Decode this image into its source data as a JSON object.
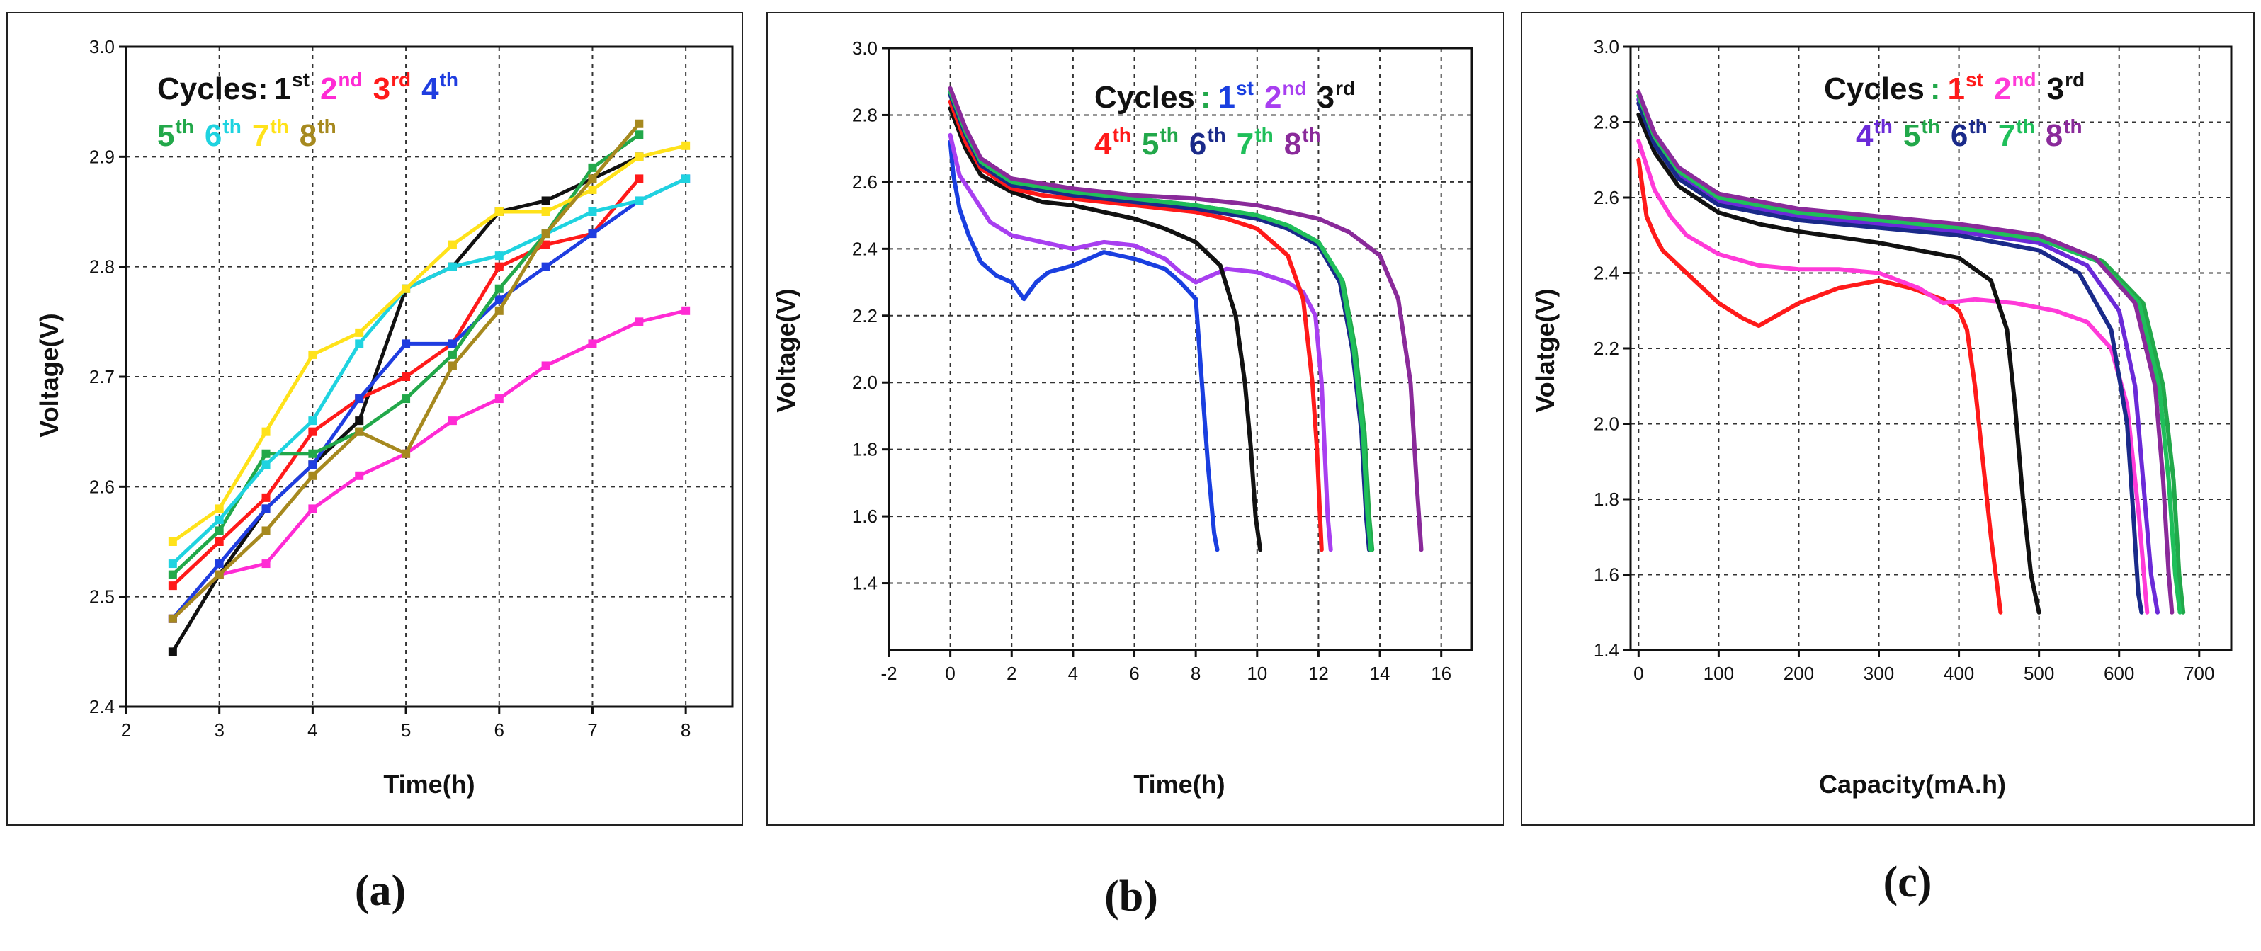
{
  "chart_data": [
    {
      "panel": "(a)",
      "type": "line",
      "xlabel": "Time(h)",
      "ylabel": "Voltage(V)",
      "xlim": [
        2,
        8.5
      ],
      "ylim": [
        2.4,
        3.0
      ],
      "xticks": [
        "2",
        "3",
        "4",
        "5",
        "6",
        "7",
        "8"
      ],
      "yticks": [
        "2.4",
        "2.5",
        "2.6",
        "2.7",
        "2.8",
        "2.9",
        "3.0"
      ],
      "legend_title": "Cycles:",
      "series": [
        {
          "name": "1st",
          "ord": "1",
          "suf": "st",
          "color": "#111111",
          "x": [
            2.5,
            3,
            3.5,
            4,
            4.5,
            5,
            5.5,
            6,
            6.5,
            7,
            7.5
          ],
          "y": [
            2.45,
            2.52,
            2.58,
            2.62,
            2.66,
            2.78,
            2.8,
            2.85,
            2.86,
            2.88,
            2.9
          ]
        },
        {
          "name": "2nd",
          "ord": "2",
          "suf": "nd",
          "color": "#ff2bd4",
          "x": [
            2.5,
            3,
            3.5,
            4,
            4.5,
            5,
            5.5,
            6,
            6.5,
            7,
            7.5,
            8
          ],
          "y": [
            2.48,
            2.52,
            2.53,
            2.58,
            2.61,
            2.63,
            2.66,
            2.68,
            2.71,
            2.73,
            2.75,
            2.76
          ]
        },
        {
          "name": "3rd",
          "ord": "3",
          "suf": "rd",
          "color": "#ff1a1a",
          "x": [
            2.5,
            3,
            3.5,
            4,
            4.5,
            5,
            5.5,
            6,
            6.5,
            7,
            7.5
          ],
          "y": [
            2.51,
            2.55,
            2.59,
            2.65,
            2.68,
            2.7,
            2.73,
            2.8,
            2.82,
            2.83,
            2.88
          ]
        },
        {
          "name": "4th",
          "ord": "4",
          "suf": "th",
          "color": "#1f3de0",
          "x": [
            2.5,
            3,
            3.5,
            4,
            4.5,
            5,
            5.5,
            6,
            6.5,
            7,
            7.5,
            8
          ],
          "y": [
            2.48,
            2.53,
            2.58,
            2.62,
            2.68,
            2.73,
            2.73,
            2.77,
            2.8,
            2.83,
            2.86,
            2.88
          ]
        },
        {
          "name": "5th",
          "ord": "5",
          "suf": "th",
          "color": "#22a84a",
          "x": [
            2.5,
            3,
            3.5,
            4,
            4.5,
            5,
            5.5,
            6,
            6.5,
            7,
            7.5
          ],
          "y": [
            2.52,
            2.56,
            2.63,
            2.63,
            2.65,
            2.68,
            2.72,
            2.78,
            2.83,
            2.89,
            2.92
          ]
        },
        {
          "name": "6th",
          "ord": "6",
          "suf": "th",
          "color": "#1fd3e0",
          "x": [
            2.5,
            3,
            3.5,
            4,
            4.5,
            5,
            5.5,
            6,
            6.5,
            7,
            7.5,
            8
          ],
          "y": [
            2.53,
            2.57,
            2.62,
            2.66,
            2.73,
            2.78,
            2.8,
            2.81,
            2.83,
            2.85,
            2.86,
            2.88
          ]
        },
        {
          "name": "7th",
          "ord": "7",
          "suf": "th",
          "color": "#ffe21a",
          "x": [
            2.5,
            3,
            3.5,
            4,
            4.5,
            5,
            5.5,
            6,
            6.5,
            7,
            7.5,
            8
          ],
          "y": [
            2.55,
            2.58,
            2.65,
            2.72,
            2.74,
            2.78,
            2.82,
            2.85,
            2.85,
            2.87,
            2.9,
            2.91
          ]
        },
        {
          "name": "8th",
          "ord": "8",
          "suf": "th",
          "color": "#a6891f",
          "x": [
            2.5,
            3,
            3.5,
            4,
            4.5,
            5,
            5.5,
            6,
            6.5,
            7,
            7.5
          ],
          "y": [
            2.48,
            2.52,
            2.56,
            2.61,
            2.65,
            2.63,
            2.71,
            2.76,
            2.83,
            2.88,
            2.93
          ]
        }
      ]
    },
    {
      "panel": "(b)",
      "type": "line",
      "xlabel": "Time(h)",
      "ylabel": "Voltage(V)",
      "xlim": [
        -2,
        17
      ],
      "ylim": [
        1.2,
        3.0
      ],
      "xticks": [
        "-2",
        "0",
        "2",
        "4",
        "6",
        "8",
        "10",
        "12",
        "14",
        "16"
      ],
      "yticks": [
        "1.4",
        "1.6",
        "1.8",
        "2.0",
        "2.2",
        "2.4",
        "2.6",
        "2.8",
        "3.0"
      ],
      "legend_title": "Cycles",
      "legend_sep": ":",
      "series": [
        {
          "name": "1st",
          "ord": "1",
          "suf": "st",
          "color": "#1a3fe0",
          "x": [
            0,
            0.1,
            0.3,
            0.6,
            1,
            1.5,
            2,
            2.4,
            2.8,
            3.2,
            4,
            5,
            6,
            7,
            7.5,
            8,
            8.2,
            8.4,
            8.6,
            8.7
          ],
          "y": [
            2.72,
            2.62,
            2.52,
            2.44,
            2.36,
            2.32,
            2.3,
            2.25,
            2.3,
            2.33,
            2.35,
            2.39,
            2.37,
            2.34,
            2.3,
            2.25,
            2.0,
            1.75,
            1.55,
            1.5
          ]
        },
        {
          "name": "2nd",
          "ord": "2",
          "suf": "nd",
          "color": "#a83ff0",
          "x": [
            0,
            0.3,
            0.8,
            1.3,
            2,
            3,
            4,
            5,
            6,
            7,
            7.5,
            8,
            9,
            10,
            11,
            11.5,
            11.9,
            12.1,
            12.2,
            12.3,
            12.4
          ],
          "y": [
            2.74,
            2.62,
            2.55,
            2.48,
            2.44,
            2.42,
            2.4,
            2.42,
            2.41,
            2.37,
            2.33,
            2.3,
            2.34,
            2.33,
            2.3,
            2.27,
            2.2,
            2.0,
            1.8,
            1.6,
            1.5
          ]
        },
        {
          "name": "3rd",
          "ord": "3",
          "suf": "rd",
          "color": "#111111",
          "x": [
            0,
            0.5,
            1,
            2,
            3,
            4,
            5,
            6,
            7,
            8,
            8.8,
            9.3,
            9.6,
            9.8,
            9.95,
            10.1
          ],
          "y": [
            2.82,
            2.7,
            2.62,
            2.57,
            2.54,
            2.53,
            2.51,
            2.49,
            2.46,
            2.42,
            2.35,
            2.2,
            2.0,
            1.8,
            1.6,
            1.5
          ]
        },
        {
          "name": "4th",
          "ord": "4",
          "suf": "th",
          "color": "#ff1a1a",
          "x": [
            0,
            0.5,
            1,
            2,
            3,
            4,
            5,
            6,
            7,
            8,
            9,
            10,
            11,
            11.5,
            11.8,
            11.95,
            12.05,
            12.1
          ],
          "y": [
            2.84,
            2.72,
            2.64,
            2.58,
            2.56,
            2.55,
            2.54,
            2.53,
            2.52,
            2.51,
            2.49,
            2.46,
            2.38,
            2.25,
            2.0,
            1.8,
            1.6,
            1.5
          ]
        },
        {
          "name": "5th",
          "ord": "5",
          "suf": "th",
          "color": "#22a84a",
          "x": [
            0,
            0.5,
            1,
            2,
            4,
            6,
            8,
            10,
            11,
            12,
            12.8,
            13.2,
            13.5,
            13.65,
            13.75
          ],
          "y": [
            2.86,
            2.74,
            2.66,
            2.6,
            2.57,
            2.55,
            2.53,
            2.5,
            2.47,
            2.42,
            2.3,
            2.1,
            1.85,
            1.6,
            1.5
          ]
        },
        {
          "name": "6th",
          "ord": "6",
          "suf": "th",
          "color": "#1a2a8a",
          "x": [
            0,
            0.5,
            1,
            2,
            4,
            6,
            8,
            10,
            11,
            12,
            12.7,
            13.1,
            13.4,
            13.55,
            13.65
          ],
          "y": [
            2.86,
            2.74,
            2.65,
            2.59,
            2.56,
            2.54,
            2.52,
            2.49,
            2.46,
            2.41,
            2.3,
            2.1,
            1.85,
            1.6,
            1.5
          ]
        },
        {
          "name": "7th",
          "ord": "7",
          "suf": "th",
          "color": "#1fbf5a",
          "x": [
            0,
            0.5,
            1,
            2,
            4,
            6,
            8,
            10,
            11,
            12,
            12.75,
            13.15,
            13.45,
            13.6,
            13.7
          ],
          "y": [
            2.87,
            2.75,
            2.66,
            2.6,
            2.57,
            2.55,
            2.53,
            2.5,
            2.47,
            2.42,
            2.31,
            2.1,
            1.85,
            1.6,
            1.5
          ]
        },
        {
          "name": "8th",
          "ord": "8",
          "suf": "th",
          "color": "#8a2a9a",
          "x": [
            0,
            0.5,
            1,
            2,
            4,
            6,
            8,
            10,
            12,
            13,
            14,
            14.6,
            15,
            15.2,
            15.35
          ],
          "y": [
            2.88,
            2.76,
            2.67,
            2.61,
            2.58,
            2.56,
            2.55,
            2.53,
            2.49,
            2.45,
            2.38,
            2.25,
            2.0,
            1.7,
            1.5
          ]
        }
      ]
    },
    {
      "panel": "(c)",
      "type": "line",
      "xlabel": "Capacity(mA.h)",
      "ylabel": "Volatge(V)",
      "xlim": [
        -10,
        740
      ],
      "ylim": [
        1.4,
        3.0
      ],
      "xticks": [
        "0",
        "100",
        "200",
        "300",
        "400",
        "500",
        "600",
        "700"
      ],
      "yticks": [
        "1.4",
        "1.6",
        "1.8",
        "2.0",
        "2.2",
        "2.4",
        "2.6",
        "2.8",
        "3.0"
      ],
      "legend_title": "Cycles",
      "legend_sep": ":",
      "series": [
        {
          "name": "1st",
          "ord": "1",
          "suf": "st",
          "color": "#ff1a1a",
          "x": [
            0,
            10,
            20,
            30,
            50,
            80,
            100,
            130,
            150,
            200,
            250,
            300,
            340,
            380,
            400,
            410,
            420,
            430,
            440,
            452
          ],
          "y": [
            2.7,
            2.55,
            2.5,
            2.46,
            2.42,
            2.36,
            2.32,
            2.28,
            2.26,
            2.32,
            2.36,
            2.38,
            2.36,
            2.33,
            2.3,
            2.25,
            2.1,
            1.9,
            1.7,
            1.5
          ]
        },
        {
          "name": "2nd",
          "ord": "2",
          "suf": "nd",
          "color": "#ff3ad8",
          "x": [
            0,
            20,
            40,
            60,
            100,
            150,
            200,
            250,
            300,
            350,
            380,
            420,
            470,
            520,
            560,
            590,
            610,
            625,
            635
          ],
          "y": [
            2.75,
            2.62,
            2.55,
            2.5,
            2.45,
            2.42,
            2.41,
            2.41,
            2.4,
            2.36,
            2.32,
            2.33,
            2.32,
            2.3,
            2.27,
            2.2,
            2.05,
            1.75,
            1.5
          ]
        },
        {
          "name": "3rd",
          "ord": "3",
          "suf": "rd",
          "color": "#111111",
          "x": [
            0,
            20,
            50,
            100,
            150,
            200,
            300,
            400,
            440,
            460,
            470,
            480,
            490,
            500
          ],
          "y": [
            2.82,
            2.72,
            2.63,
            2.56,
            2.53,
            2.51,
            2.48,
            2.44,
            2.38,
            2.25,
            2.05,
            1.8,
            1.6,
            1.5
          ]
        },
        {
          "name": "4th",
          "ord": "4",
          "suf": "th",
          "color": "#6b2ad8",
          "x": [
            0,
            20,
            50,
            100,
            200,
            300,
            400,
            500,
            560,
            600,
            620,
            630,
            640,
            648
          ],
          "y": [
            2.86,
            2.75,
            2.66,
            2.59,
            2.55,
            2.53,
            2.51,
            2.48,
            2.42,
            2.3,
            2.1,
            1.85,
            1.6,
            1.5
          ]
        },
        {
          "name": "5th",
          "ord": "5",
          "suf": "th",
          "color": "#22a84a",
          "x": [
            0,
            20,
            50,
            100,
            200,
            300,
            400,
            500,
            580,
            630,
            655,
            668,
            675,
            680
          ],
          "y": [
            2.87,
            2.76,
            2.67,
            2.6,
            2.56,
            2.54,
            2.52,
            2.49,
            2.43,
            2.32,
            2.1,
            1.85,
            1.6,
            1.5
          ]
        },
        {
          "name": "6th",
          "ord": "6",
          "suf": "th",
          "color": "#1a2a8a",
          "x": [
            0,
            20,
            50,
            100,
            200,
            300,
            400,
            500,
            550,
            590,
            610,
            618,
            624,
            628
          ],
          "y": [
            2.85,
            2.74,
            2.65,
            2.58,
            2.54,
            2.52,
            2.5,
            2.46,
            2.4,
            2.25,
            2.0,
            1.75,
            1.55,
            1.5
          ]
        },
        {
          "name": "7th",
          "ord": "7",
          "suf": "th",
          "color": "#1fbf5a",
          "x": [
            0,
            20,
            50,
            100,
            200,
            300,
            400,
            500,
            575,
            625,
            650,
            662,
            670,
            676
          ],
          "y": [
            2.87,
            2.76,
            2.67,
            2.6,
            2.56,
            2.54,
            2.52,
            2.49,
            2.43,
            2.32,
            2.1,
            1.85,
            1.6,
            1.5
          ]
        },
        {
          "name": "8th",
          "ord": "8",
          "suf": "th",
          "color": "#8a2a9a",
          "x": [
            0,
            20,
            50,
            100,
            200,
            300,
            400,
            500,
            570,
            620,
            645,
            655,
            662,
            666
          ],
          "y": [
            2.88,
            2.77,
            2.68,
            2.61,
            2.57,
            2.55,
            2.53,
            2.5,
            2.44,
            2.32,
            2.1,
            1.85,
            1.6,
            1.5
          ]
        }
      ]
    }
  ]
}
